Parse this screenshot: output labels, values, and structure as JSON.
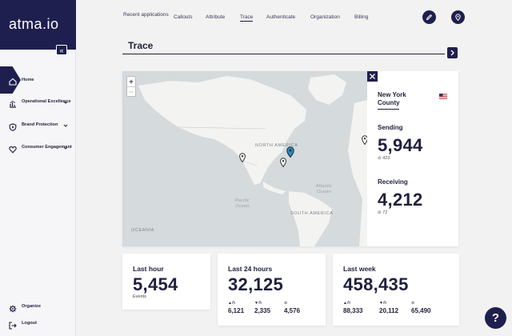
{
  "brand": {
    "name": "atma.io"
  },
  "sidebar": {
    "collapse_label": "«",
    "items": [
      {
        "label": "Home",
        "icon": "home-icon"
      },
      {
        "label": "Operational Excellence",
        "icon": "chart-icon"
      },
      {
        "label": "Brand Protection",
        "icon": "shield-icon"
      },
      {
        "label": "Consumer Engagement",
        "icon": "heart-icon"
      }
    ],
    "bottom": [
      {
        "label": "Organize",
        "icon": "gear-icon"
      },
      {
        "label": "Logout",
        "icon": "logout-icon"
      }
    ]
  },
  "topnav": {
    "tabs": [
      "Recent applications",
      "Callouts",
      "Attribute",
      "Trace",
      "Authenticate",
      "Organization",
      "Billing"
    ],
    "active": "Trace"
  },
  "trace": {
    "title": "Trace"
  },
  "map": {
    "labels": [
      "NORTH AMERICA",
      "SOUTH AMERICA",
      "OCEANIA",
      "Atlantic Ocean",
      "Pacific Ocean"
    ],
    "zoom_in": "+",
    "zoom_out": "−"
  },
  "info": {
    "location": "New York County",
    "sending_label": "Sending",
    "sending_value": "5,944",
    "sending_sub": "423",
    "receiving_label": "Receiving",
    "receiving_value": "4,212",
    "receiving_sub": "72"
  },
  "stats": {
    "last_hour": {
      "label": "Last hour",
      "value": "5,454",
      "sub": "Events"
    },
    "last_24h": {
      "label": "Last 24 hours",
      "value": "32,125",
      "minis": [
        {
          "unit": "/h",
          "value": "6,121"
        },
        {
          "unit": "/h",
          "value": "2,335"
        },
        {
          "unit": "",
          "value": "4,576"
        }
      ]
    },
    "last_week": {
      "label": "Last week",
      "value": "458,435",
      "minis": [
        {
          "unit": "/h",
          "value": "88,333"
        },
        {
          "unit": "/h",
          "value": "20,112"
        },
        {
          "unit": "",
          "value": "65,490"
        }
      ]
    }
  },
  "help": {
    "label": "?"
  },
  "colors": {
    "primary": "#1f1f4f",
    "map_land": "#f3f3f1",
    "map_water": "#d5dadc",
    "pin_active": "#2a8fb8"
  }
}
